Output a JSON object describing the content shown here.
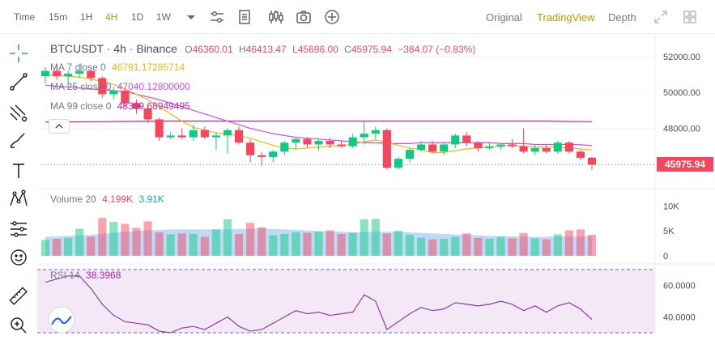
{
  "topbar": {
    "timeframes": [
      "Time",
      "15m",
      "1H",
      "4H",
      "1D",
      "1W"
    ],
    "active_timeframe": "4H",
    "view_tabs": [
      "Original",
      "TradingView",
      "Depth"
    ],
    "active_view": "TradingView",
    "icons": [
      "chevron-down-icon",
      "indicator-settings-icon",
      "template-icon",
      "chart-type-icon",
      "camera-icon",
      "add-icon",
      "fullscreen-icon",
      "grid-layout-icon"
    ]
  },
  "toolbar": {
    "icons": [
      "crosshair-icon",
      "trend-line-icon",
      "fib-tool-icon",
      "brush-icon",
      "text-tool-icon",
      "pattern-icon",
      "measure-icon",
      "emoji-icon",
      "ruler-icon",
      "zoom-in-icon"
    ]
  },
  "legend": {
    "symbol": "BTCUSDT · 4h · Binance",
    "ohlc": {
      "o_label": "O",
      "o": "46360.01",
      "h_label": "H",
      "h": "46413.47",
      "l_label": "L",
      "l": "45696.00",
      "c_label": "C",
      "c": "45975.94",
      "change": "−384.07 (−0.83%)"
    },
    "ma7": {
      "label": "MA 7 close 0",
      "value": "46791.17285714",
      "color": "#f0b90b"
    },
    "ma25": {
      "label": "MA 25 close 0",
      "value": "47040.12800000",
      "color": "#d946ef"
    },
    "ma99": {
      "label": "MA 99 close 0",
      "value": "48369.68949495",
      "color": "#c026a3"
    },
    "volume": {
      "label": "Volume 20",
      "v1": "4.199K",
      "v2": "3.91K"
    },
    "rsi": {
      "label": "RSI 14",
      "value": "38.3968"
    }
  },
  "price_axis": {
    "labels": [
      "52000.00",
      "50000.00",
      "48000.00"
    ],
    "last_price": "45975.94"
  },
  "volume_axis": {
    "labels": [
      "10K",
      "5K",
      "0"
    ]
  },
  "rsi_axis": {
    "labels": [
      "60.0000",
      "40.0000"
    ]
  },
  "colors": {
    "up": "#0ecb81",
    "down": "#f6465d",
    "accent": "#c99400",
    "ma7": "#f0b90b",
    "ma25": "#d946ef",
    "ma99": "#c026a3",
    "rsi_line": "#8a3fa8",
    "vol_ma": "#8fb8ee"
  },
  "chart_data": {
    "type": "candlestick",
    "candles": [
      {
        "o": 50900,
        "h": 51400,
        "l": 50500,
        "c": 51200
      },
      {
        "o": 51200,
        "h": 51500,
        "l": 50700,
        "c": 50900
      },
      {
        "o": 50900,
        "h": 51200,
        "l": 50300,
        "c": 51050
      },
      {
        "o": 51050,
        "h": 51600,
        "l": 50800,
        "c": 51200
      },
      {
        "o": 51200,
        "h": 51300,
        "l": 50600,
        "c": 50800
      },
      {
        "o": 50800,
        "h": 50900,
        "l": 49700,
        "c": 49900
      },
      {
        "o": 49900,
        "h": 50300,
        "l": 49600,
        "c": 50100
      },
      {
        "o": 50100,
        "h": 50200,
        "l": 49200,
        "c": 49400
      },
      {
        "o": 49400,
        "h": 49600,
        "l": 48800,
        "c": 49100
      },
      {
        "o": 49100,
        "h": 49300,
        "l": 48300,
        "c": 48500
      },
      {
        "o": 48500,
        "h": 48600,
        "l": 47300,
        "c": 47500
      },
      {
        "o": 47500,
        "h": 47800,
        "l": 47400,
        "c": 47600
      },
      {
        "o": 47600,
        "h": 48000,
        "l": 47400,
        "c": 47500
      },
      {
        "o": 47500,
        "h": 48200,
        "l": 47300,
        "c": 47900
      },
      {
        "o": 47900,
        "h": 48100,
        "l": 47400,
        "c": 47500
      },
      {
        "o": 47500,
        "h": 47800,
        "l": 46800,
        "c": 47600
      },
      {
        "o": 47600,
        "h": 48000,
        "l": 46600,
        "c": 47900
      },
      {
        "o": 47900,
        "h": 48100,
        "l": 47100,
        "c": 47200
      },
      {
        "o": 47200,
        "h": 47400,
        "l": 46100,
        "c": 46500
      },
      {
        "o": 46500,
        "h": 46700,
        "l": 45900,
        "c": 46400
      },
      {
        "o": 46400,
        "h": 46800,
        "l": 46100,
        "c": 46700
      },
      {
        "o": 46700,
        "h": 47300,
        "l": 46500,
        "c": 47200
      },
      {
        "o": 47200,
        "h": 47500,
        "l": 46800,
        "c": 47400
      },
      {
        "o": 47400,
        "h": 47500,
        "l": 46900,
        "c": 47100
      },
      {
        "o": 47100,
        "h": 47400,
        "l": 46800,
        "c": 47300
      },
      {
        "o": 47300,
        "h": 47500,
        "l": 46900,
        "c": 47100
      },
      {
        "o": 47100,
        "h": 47300,
        "l": 46900,
        "c": 47000
      },
      {
        "o": 47000,
        "h": 47700,
        "l": 46900,
        "c": 47500
      },
      {
        "o": 47500,
        "h": 48400,
        "l": 47100,
        "c": 47700
      },
      {
        "o": 47700,
        "h": 48100,
        "l": 47400,
        "c": 47900
      },
      {
        "o": 47900,
        "h": 48000,
        "l": 45700,
        "c": 45800
      },
      {
        "o": 45800,
        "h": 46400,
        "l": 45700,
        "c": 46300
      },
      {
        "o": 46300,
        "h": 46900,
        "l": 46100,
        "c": 46800
      },
      {
        "o": 46800,
        "h": 47300,
        "l": 46700,
        "c": 47100
      },
      {
        "o": 47100,
        "h": 47300,
        "l": 46600,
        "c": 46700
      },
      {
        "o": 46700,
        "h": 47200,
        "l": 46500,
        "c": 47100
      },
      {
        "o": 47100,
        "h": 47700,
        "l": 46900,
        "c": 47600
      },
      {
        "o": 47600,
        "h": 47800,
        "l": 47000,
        "c": 47200
      },
      {
        "o": 47200,
        "h": 47300,
        "l": 46700,
        "c": 46900
      },
      {
        "o": 46900,
        "h": 47200,
        "l": 46800,
        "c": 47000
      },
      {
        "o": 47000,
        "h": 47200,
        "l": 46800,
        "c": 47100
      },
      {
        "o": 47100,
        "h": 47400,
        "l": 46900,
        "c": 47000
      },
      {
        "o": 47000,
        "h": 48000,
        "l": 46600,
        "c": 46700
      },
      {
        "o": 46700,
        "h": 47100,
        "l": 46500,
        "c": 46900
      },
      {
        "o": 46900,
        "h": 47100,
        "l": 46600,
        "c": 46700
      },
      {
        "o": 46700,
        "h": 47300,
        "l": 46600,
        "c": 47200
      },
      {
        "o": 47200,
        "h": 47300,
        "l": 46600,
        "c": 46700
      },
      {
        "o": 46700,
        "h": 46800,
        "l": 46200,
        "c": 46360
      },
      {
        "o": 46360,
        "h": 46413,
        "l": 45696,
        "c": 45976
      }
    ],
    "ma7": [
      51000,
      50950,
      50900,
      50850,
      50750,
      50600,
      50450,
      50200,
      49900,
      49600,
      49200,
      48800,
      48400,
      48050,
      47900,
      47750,
      47650,
      47600,
      47450,
      47250,
      47050,
      46900,
      46850,
      46900,
      46950,
      47000,
      47050,
      47100,
      47250,
      47350,
      47200,
      47050,
      46900,
      46800,
      46650,
      46650,
      46750,
      46850,
      46900,
      46950,
      47000,
      47050,
      47000,
      46950,
      46950,
      46950,
      46900,
      46850,
      46791
    ],
    "ma25": [
      50400,
      50350,
      50300,
      50250,
      50200,
      50150,
      50100,
      50050,
      49900,
      49750,
      49600,
      49400,
      49200,
      49000,
      48800,
      48600,
      48400,
      48200,
      48000,
      47850,
      47700,
      47600,
      47500,
      47450,
      47400,
      47350,
      47300,
      47250,
      47200,
      47200,
      47150,
      47150,
      47150,
      47200,
      47200,
      47200,
      47200,
      47200,
      47200,
      47200,
      47150,
      47150,
      47150,
      47100,
      47100,
      47100,
      47100,
      47080,
      47040
    ],
    "ma99": [
      48350,
      48350,
      48360,
      48360,
      48370,
      48370,
      48380,
      48380,
      48390,
      48390,
      48400,
      48400,
      48400,
      48400,
      48400,
      48400,
      48400,
      48400,
      48400,
      48400,
      48400,
      48400,
      48400,
      48400,
      48400,
      48400,
      48400,
      48400,
      48400,
      48400,
      48400,
      48400,
      48400,
      48400,
      48400,
      48400,
      48400,
      48400,
      48400,
      48400,
      48400,
      48400,
      48400,
      48400,
      48400,
      48390,
      48380,
      48375,
      48369
    ],
    "volume": [
      3.2,
      3.4,
      3.6,
      5.4,
      3.8,
      7.6,
      6.8,
      6.4,
      5.6,
      6.9,
      4.7,
      4.3,
      4.5,
      4.4,
      3.8,
      5.3,
      7.3,
      4.4,
      6.6,
      5.7,
      4.1,
      4.4,
      4.7,
      4.6,
      4.8,
      5.1,
      4.4,
      4.6,
      7.3,
      7.4,
      4.5,
      5.0,
      4.2,
      3.6,
      3.3,
      3.4,
      3.8,
      4.5,
      3.6,
      3.4,
      3.8,
      3.5,
      4.6,
      3.5,
      3.3,
      4.3,
      5.1,
      5.3,
      4.2
    ],
    "volume_ma": [
      3.8,
      3.9,
      4.0,
      4.1,
      4.2,
      4.4,
      4.6,
      4.8,
      5.0,
      5.1,
      5.2,
      5.3,
      5.3,
      5.3,
      5.3,
      5.3,
      5.3,
      5.4,
      5.4,
      5.5,
      5.4,
      5.3,
      5.2,
      5.1,
      5.0,
      4.9,
      4.8,
      4.7,
      4.7,
      4.8,
      4.8,
      4.8,
      4.7,
      4.6,
      4.5,
      4.4,
      4.3,
      4.2,
      4.1,
      4.0,
      3.95,
      3.9,
      3.85,
      3.8,
      3.8,
      3.9,
      3.9,
      3.9,
      3.91
    ],
    "rsi": [
      62,
      64,
      66,
      66,
      58,
      48,
      41,
      37,
      36,
      35,
      31,
      30,
      33,
      34,
      32,
      36,
      40,
      34,
      31,
      32,
      36,
      40,
      44,
      42,
      43,
      41,
      42,
      43,
      54,
      50,
      32,
      37,
      42,
      46,
      44,
      45,
      49,
      48,
      47,
      48,
      50,
      48,
      44,
      47,
      43,
      47,
      49,
      45,
      38.4
    ],
    "price_range": [
      45000,
      52400
    ],
    "volume_range": [
      0,
      12.5
    ],
    "rsi_range": [
      30,
      70
    ],
    "volume_colors": "matches candle direction"
  }
}
